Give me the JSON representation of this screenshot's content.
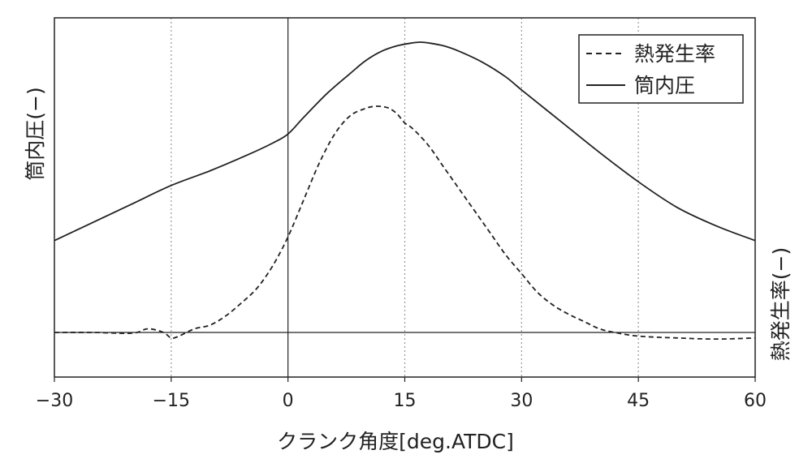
{
  "chart_data": {
    "type": "line",
    "xlabel": "クランク角度[deg.ATDC]",
    "ylabel_left": "筒内圧(−)",
    "ylabel_right": "熱発生率(−)",
    "xlim": [
      -30,
      60
    ],
    "x_ticks": [
      "−30",
      "−15",
      "0",
      "15",
      "30",
      "45",
      "60"
    ],
    "x_tick_values": [
      -30,
      -15,
      0,
      15,
      30,
      45,
      60
    ],
    "y_range": [
      -1.0,
      8.5
    ],
    "grid": "vertical dotted lines",
    "legend_position": "top-right",
    "series": [
      {
        "name": "熱発生率",
        "style": "dashed",
        "x": [
          -30,
          -25,
          -20,
          -18,
          -16,
          -15,
          -14,
          -12,
          -10,
          -8,
          -6,
          -4,
          -2,
          0,
          2,
          4,
          6,
          8,
          10,
          11,
          12,
          13,
          14,
          15,
          16,
          18,
          20,
          22,
          24,
          26,
          28,
          30,
          32,
          34,
          36,
          38,
          40,
          42,
          45,
          50,
          55,
          60
        ],
        "y": [
          0,
          0,
          -0.02,
          0.1,
          0,
          -0.15,
          -0.1,
          0.1,
          0.2,
          0.45,
          0.8,
          1.2,
          1.8,
          2.6,
          3.6,
          4.6,
          5.4,
          5.9,
          6.1,
          6.15,
          6.15,
          6.1,
          5.95,
          5.7,
          5.55,
          5.1,
          4.5,
          3.9,
          3.3,
          2.7,
          2.1,
          1.6,
          1.1,
          0.75,
          0.5,
          0.3,
          0.1,
          0.0,
          -0.1,
          -0.15,
          -0.18,
          -0.15
        ]
      },
      {
        "name": "筒内圧",
        "style": "solid",
        "x": [
          -30,
          -25,
          -20,
          -15,
          -10,
          -5,
          -2,
          0,
          2,
          5,
          8,
          10,
          12,
          14,
          16,
          17,
          18,
          20,
          22,
          25,
          28,
          30,
          35,
          40,
          45,
          50,
          55,
          60
        ],
        "y": [
          2.5,
          3.0,
          3.5,
          4.0,
          4.4,
          4.85,
          5.15,
          5.4,
          5.85,
          6.5,
          7.05,
          7.4,
          7.65,
          7.8,
          7.88,
          7.9,
          7.88,
          7.8,
          7.65,
          7.35,
          6.95,
          6.6,
          5.75,
          4.9,
          4.1,
          3.4,
          2.9,
          2.5
        ]
      }
    ]
  },
  "legend": [
    {
      "label": "熱発生率",
      "style": "dashed"
    },
    {
      "label": "筒内圧",
      "style": "solid"
    }
  ]
}
